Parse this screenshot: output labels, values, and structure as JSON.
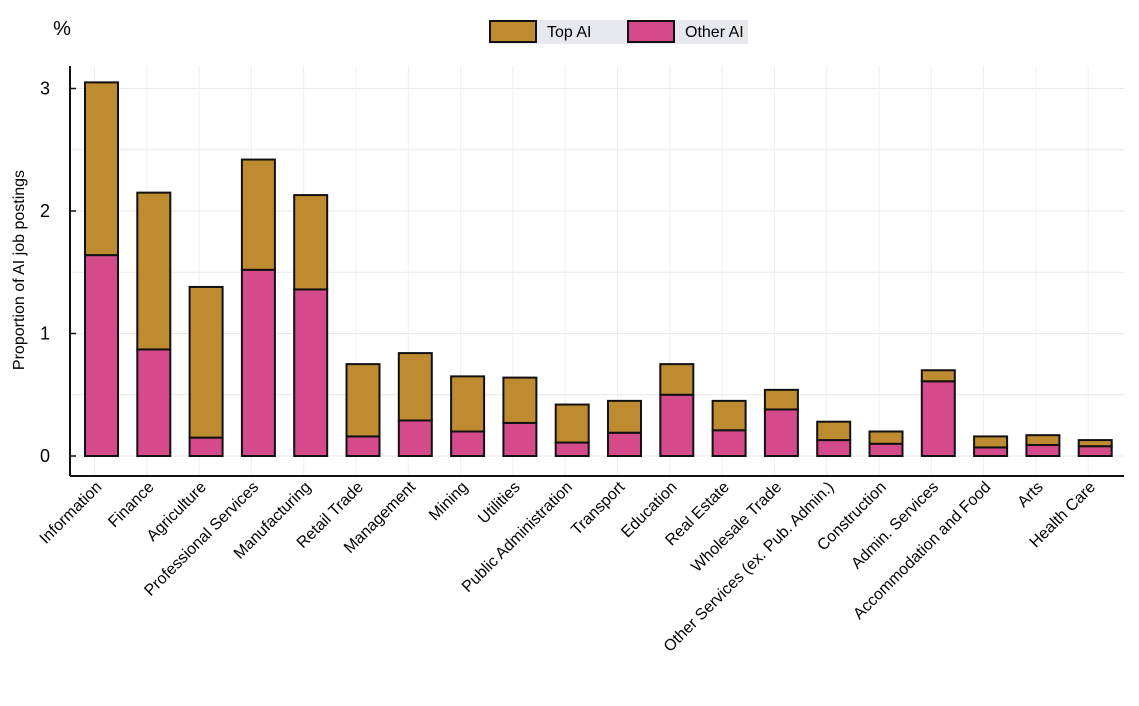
{
  "chart_data": {
    "type": "bar",
    "stacked": true,
    "unit_label": "%",
    "ylabel": "Proportion of AI job postings",
    "xlabel": "",
    "ylim": [
      0,
      3.2
    ],
    "yticks": [
      0,
      1,
      2,
      3
    ],
    "grid": true,
    "legend_placement": "top-center",
    "categories": [
      "Information",
      "Finance",
      "Agriculture",
      "Professional Services",
      "Manufacturing",
      "Retail Trade",
      "Management",
      "Mining",
      "Utilities",
      "Public Administration",
      "Transport",
      "Education",
      "Real Estate",
      "Wholesale Trade",
      "Other Services (ex. Pub. Admin.)",
      "Construction",
      "Admin. Services",
      "Accommodation and Food",
      "Arts",
      "Health Care"
    ],
    "series": [
      {
        "name": "Other AI",
        "color": "#d44a8b",
        "values": [
          1.64,
          0.87,
          0.15,
          1.52,
          1.36,
          0.16,
          0.29,
          0.2,
          0.27,
          0.11,
          0.19,
          0.5,
          0.21,
          0.38,
          0.13,
          0.1,
          0.61,
          0.07,
          0.09,
          0.08
        ]
      },
      {
        "name": "Top AI",
        "color": "#bf8b31",
        "values": [
          1.41,
          1.28,
          1.23,
          0.9,
          0.77,
          0.59,
          0.55,
          0.45,
          0.37,
          0.31,
          0.26,
          0.25,
          0.24,
          0.16,
          0.15,
          0.1,
          0.09,
          0.09,
          0.08,
          0.05
        ]
      }
    ],
    "legend_order": [
      "Top AI",
      "Other AI"
    ]
  }
}
